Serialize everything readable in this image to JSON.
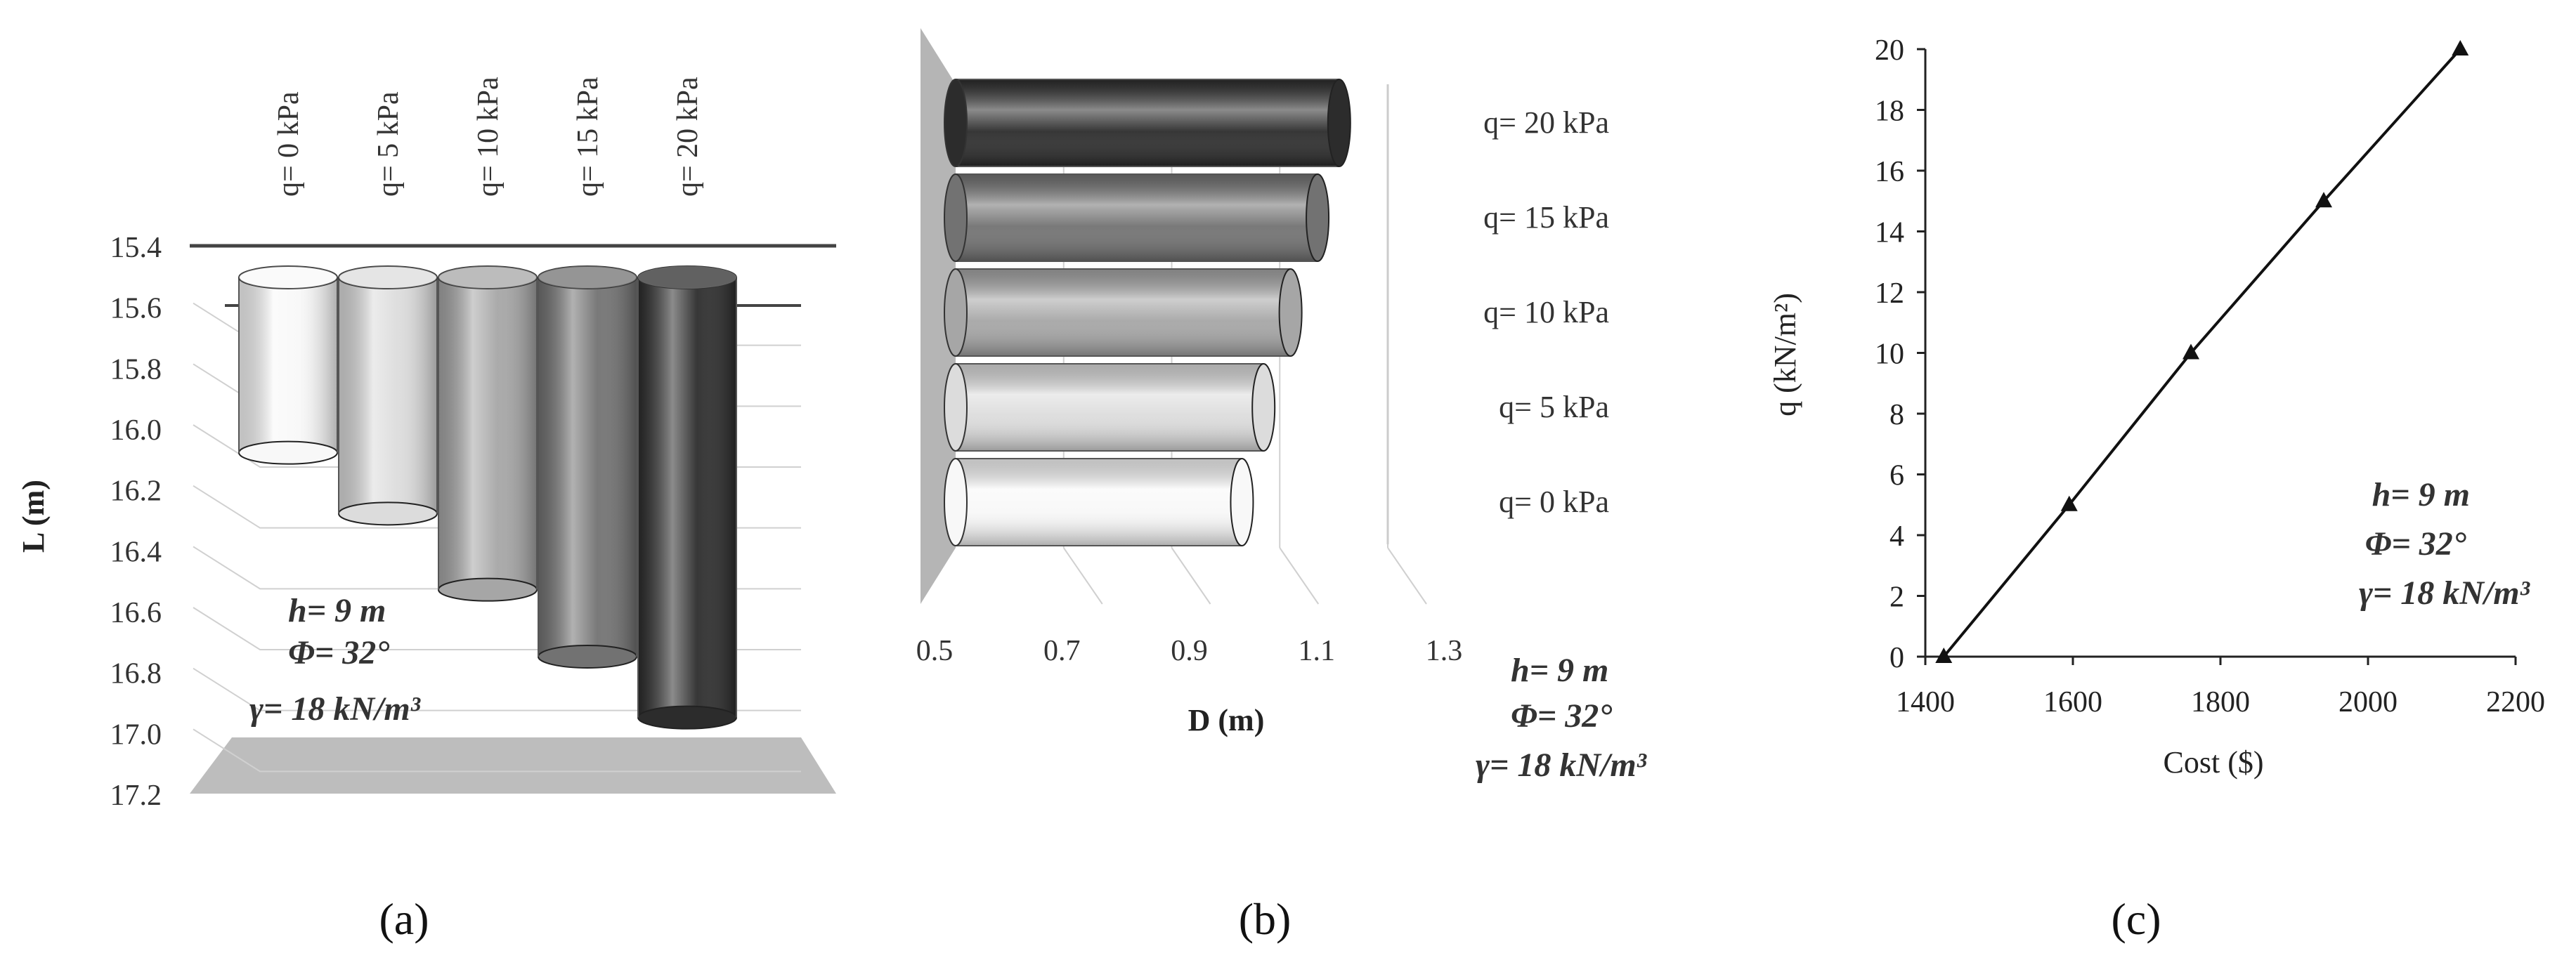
{
  "chart_data": [
    {
      "type": "bar",
      "panel_label": "(a)",
      "orientation": "vertical-3d-cylinder",
      "categories": [
        "q= 0 kPa",
        "q= 5 kPa",
        "q= 10 kPa",
        "q= 15 kPa",
        "q= 20 kPa"
      ],
      "values": [
        16.08,
        16.28,
        16.53,
        16.75,
        16.95
      ],
      "y_ticks": [
        "15.4",
        "15.6",
        "15.8",
        "16.0",
        "16.2",
        "16.4",
        "16.6",
        "16.8",
        "17.0",
        "17.2"
      ],
      "ylim": [
        15.4,
        17.2
      ],
      "y_inverted": true,
      "ylabel": "L (m)",
      "colors": [
        "#f8f8f8",
        "#dcdcdc",
        "#a6a6a6",
        "#727272",
        "#2c2c2c"
      ],
      "annotation": [
        "h= 9 m",
        "Φ= 32°",
        "γ= 18 kN/m³"
      ]
    },
    {
      "type": "bar",
      "panel_label": "(b)",
      "orientation": "horizontal-3d-cylinder",
      "categories": [
        "q= 0 kPa",
        "q= 5 kPa",
        "q= 10 kPa",
        "q= 15 kPa",
        "q= 20 kPa"
      ],
      "values": [
        1.03,
        1.07,
        1.12,
        1.17,
        1.21
      ],
      "x_ticks": [
        "0.5",
        "0.7",
        "0.9",
        "1.1",
        "1.3"
      ],
      "xlim": [
        0.5,
        1.3
      ],
      "xlabel": "D (m)",
      "colors": [
        "#f8f8f8",
        "#dcdcdc",
        "#a6a6a6",
        "#727272",
        "#2c2c2c"
      ],
      "annotation": [
        "h= 9 m",
        "Φ= 32°",
        "γ= 18 kN/m³"
      ]
    },
    {
      "type": "line",
      "panel_label": "(c)",
      "marker": "triangle",
      "x": [
        1425,
        1595,
        1760,
        1940,
        2125
      ],
      "y": [
        0,
        5,
        10,
        15,
        20
      ],
      "xlim": [
        1400,
        2200
      ],
      "ylim": [
        0,
        20
      ],
      "x_ticks": [
        "1400",
        "1600",
        "1800",
        "2000",
        "2200"
      ],
      "y_ticks": [
        "0",
        "2",
        "4",
        "6",
        "8",
        "10",
        "12",
        "14",
        "16",
        "18",
        "20"
      ],
      "xlabel": "Cost ($)",
      "ylabel": "q  (kN/m²)",
      "annotation": [
        "h= 9 m",
        "Φ= 32°",
        "γ= 18 kN/m³"
      ]
    }
  ]
}
